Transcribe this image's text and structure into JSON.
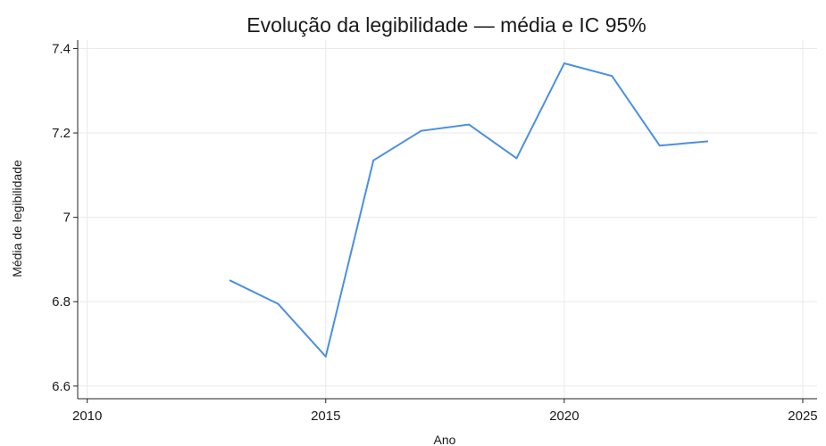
{
  "chart_data": {
    "type": "line",
    "title": "Evolução da legibilidade — média e IC 95%",
    "xlabel": "Ano",
    "ylabel": "Média de legibilidade",
    "xlim": [
      2009.8,
      2025.3
    ],
    "ylim": [
      6.57,
      7.42
    ],
    "xticks": [
      2010,
      2015,
      2020,
      2025
    ],
    "xtick_labels": [
      "2010",
      "2015",
      "2020",
      "2025"
    ],
    "yticks": [
      6.6,
      6.8,
      7.0,
      7.2,
      7.4
    ],
    "ytick_labels": [
      "6.6",
      "6.8",
      "7",
      "7.2",
      "7.4"
    ],
    "grid": true,
    "series": [
      {
        "color": "#4a90e2",
        "x": [
          2013,
          2014,
          2015,
          2016,
          2017,
          2018,
          2019,
          2020,
          2021,
          2022,
          2023
        ],
        "y": [
          6.85,
          6.795,
          6.67,
          7.135,
          7.205,
          7.22,
          7.14,
          7.365,
          7.335,
          7.17,
          7.18
        ]
      }
    ]
  }
}
